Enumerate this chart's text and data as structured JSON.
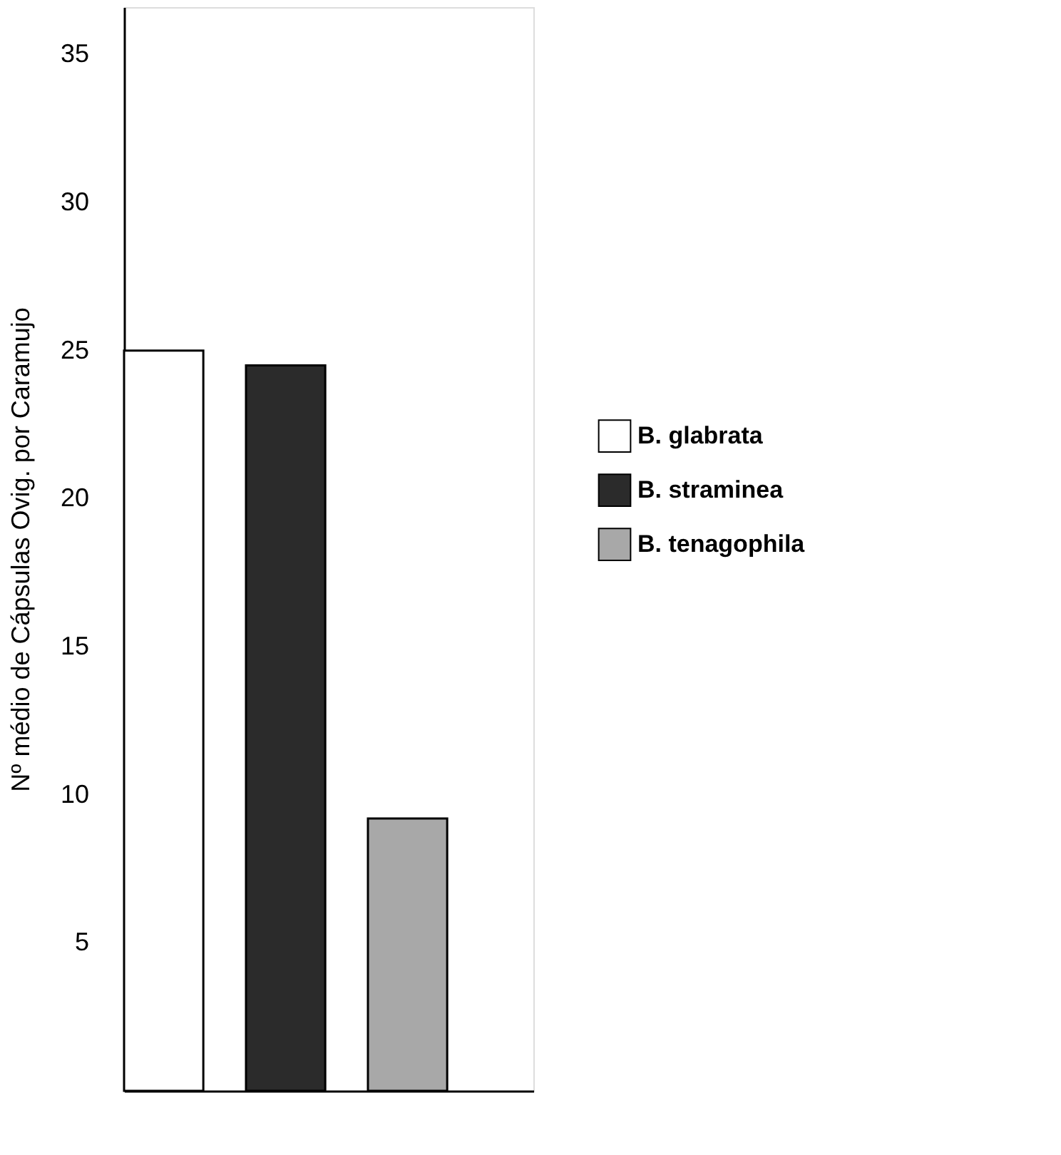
{
  "chart_data": {
    "type": "bar",
    "ylabel": "Nº médio de Cápsulas Ovig. por Caramujo",
    "categories": [
      null
    ],
    "series": [
      {
        "name": "B. glabrata",
        "color": "#ffffff",
        "values": [
          25
        ]
      },
      {
        "name": "B. straminea",
        "color": "#2b2b2b",
        "values": [
          24.5
        ]
      },
      {
        "name": "B. tenagophila",
        "color": "#a8a8a8",
        "values": [
          9.2
        ]
      }
    ],
    "ylim": [
      0,
      36.6
    ],
    "yticks": [
      5,
      10,
      15,
      20,
      25,
      30,
      35
    ],
    "grid": false,
    "legend": "right",
    "tick_labels": "y"
  }
}
